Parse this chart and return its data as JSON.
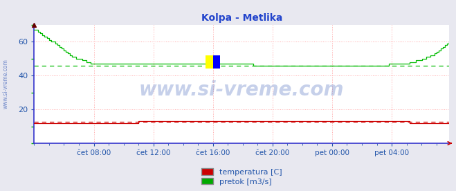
{
  "title": "Kolpa - Metlika",
  "title_color": "#2244cc",
  "title_fontsize": 10,
  "bg_color": "#e8e8f0",
  "plot_bg_color": "#ffffff",
  "border_color_left": "#3333cc",
  "border_color_bottom": "#3333cc",
  "watermark": "www.si-vreme.com",
  "watermark_color": "#4466bb",
  "watermark_alpha": 0.3,
  "watermark_fontsize": 20,
  "ylabel_text": "www.si-vreme.com",
  "ylabel_color": "#4466bb",
  "ylabel_fontsize": 5.5,
  "ylim": [
    0,
    70
  ],
  "yticks": [
    20,
    40,
    60
  ],
  "ytick_color": "#2255aa",
  "ytick_fontsize": 8,
  "grid_color": "#ffaaaa",
  "grid_linestyle": ":",
  "grid_linewidth": 0.7,
  "xticklabels": [
    "čet 08:00",
    "čet 12:00",
    "čet 16:00",
    "čet 20:00",
    "pet 00:00",
    "pet 04:00"
  ],
  "xtick_color": "#2255aa",
  "xtick_fontsize": 7.5,
  "legend_labels": [
    "temperatura [C]",
    "pretok [m3/s]"
  ],
  "legend_colors": [
    "#cc0000",
    "#00aa00"
  ],
  "pretok_color": "#00bb00",
  "temperatura_color": "#cc0000",
  "pretok_mean_color": "#00bb00",
  "temperatura_mean_color": "#cc0000",
  "pretok_mean": 46.0,
  "temperatura_mean": 12.5,
  "arrow_color": "#cc0000",
  "left_spine_color": "#3333cc",
  "bottom_spine_color": "#3333cc",
  "pretok_data": [
    67,
    67,
    66,
    65,
    64,
    63,
    62,
    61,
    60,
    60,
    59,
    58,
    57,
    56,
    55,
    54,
    53,
    52,
    51,
    51,
    50,
    50,
    50,
    49,
    49,
    48,
    48,
    47,
    47,
    47,
    47,
    47,
    47,
    47,
    47,
    47,
    47,
    47,
    47,
    47,
    47,
    47,
    47,
    47,
    47,
    47,
    47,
    47,
    47,
    47,
    47,
    47,
    47,
    47,
    47,
    47,
    47,
    47,
    47,
    47,
    47,
    47,
    47,
    47,
    47,
    47,
    47,
    47,
    47,
    47,
    47,
    47,
    47,
    47,
    47,
    47,
    47,
    47,
    47,
    47,
    47,
    47,
    47,
    47,
    47,
    47,
    47,
    47,
    47,
    47,
    47,
    47,
    47,
    47,
    47,
    47,
    47,
    47,
    47,
    47,
    47,
    47,
    47,
    47,
    47,
    46,
    46,
    46,
    46,
    46,
    46,
    46,
    46,
    46,
    46,
    46,
    46,
    46,
    46,
    46,
    46,
    46,
    46,
    46,
    46,
    46,
    46,
    46,
    46,
    46,
    46,
    46,
    46,
    46,
    46,
    46,
    46,
    46,
    46,
    46,
    46,
    46,
    46,
    46,
    46,
    46,
    46,
    46,
    46,
    46,
    46,
    46,
    46,
    46,
    46,
    46,
    46,
    46,
    46,
    46,
    46,
    46,
    46,
    46,
    46,
    46,
    46,
    46,
    46,
    46,
    47,
    47,
    47,
    47,
    47,
    47,
    47,
    47,
    47,
    47,
    48,
    48,
    48,
    49,
    49,
    49,
    50,
    50,
    51,
    51,
    52,
    52,
    53,
    54,
    55,
    56,
    57,
    58,
    59,
    60
  ],
  "temperatura_data": [
    12,
    12,
    12,
    12,
    12,
    12,
    12,
    12,
    12,
    12,
    12,
    12,
    12,
    12,
    12,
    12,
    12,
    12,
    12,
    12,
    12,
    12,
    12,
    12,
    12,
    12,
    12,
    12,
    12,
    12,
    12,
    12,
    12,
    12,
    12,
    12,
    12,
    12,
    12,
    12,
    12,
    12,
    12,
    12,
    12,
    12,
    12,
    12,
    12,
    12,
    13,
    13,
    13,
    13,
    13,
    13,
    13,
    13,
    13,
    13,
    13,
    13,
    13,
    13,
    13,
    13,
    13,
    13,
    13,
    13,
    13,
    13,
    13,
    13,
    13,
    13,
    13,
    13,
    13,
    13,
    13,
    13,
    13,
    13,
    13,
    13,
    13,
    13,
    13,
    13,
    13,
    13,
    13,
    13,
    13,
    13,
    13,
    13,
    13,
    13,
    13,
    13,
    13,
    13,
    13,
    13,
    13,
    13,
    13,
    13,
    13,
    13,
    13,
    13,
    13,
    13,
    13,
    13,
    13,
    13,
    13,
    13,
    13,
    13,
    13,
    13,
    13,
    13,
    13,
    13,
    13,
    13,
    13,
    13,
    13,
    13,
    13,
    13,
    13,
    13,
    13,
    13,
    13,
    13,
    13,
    13,
    13,
    13,
    13,
    13,
    13,
    13,
    13,
    13,
    13,
    13,
    13,
    13,
    13,
    13,
    13,
    13,
    13,
    13,
    13,
    13,
    13,
    13,
    13,
    13,
    13,
    13,
    13,
    13,
    13,
    13,
    13,
    13,
    13,
    13,
    12,
    12,
    12,
    12,
    12,
    12,
    12,
    12,
    12,
    12,
    12,
    12,
    12,
    12,
    12,
    12,
    12,
    12,
    12,
    12
  ],
  "n_points": 200
}
